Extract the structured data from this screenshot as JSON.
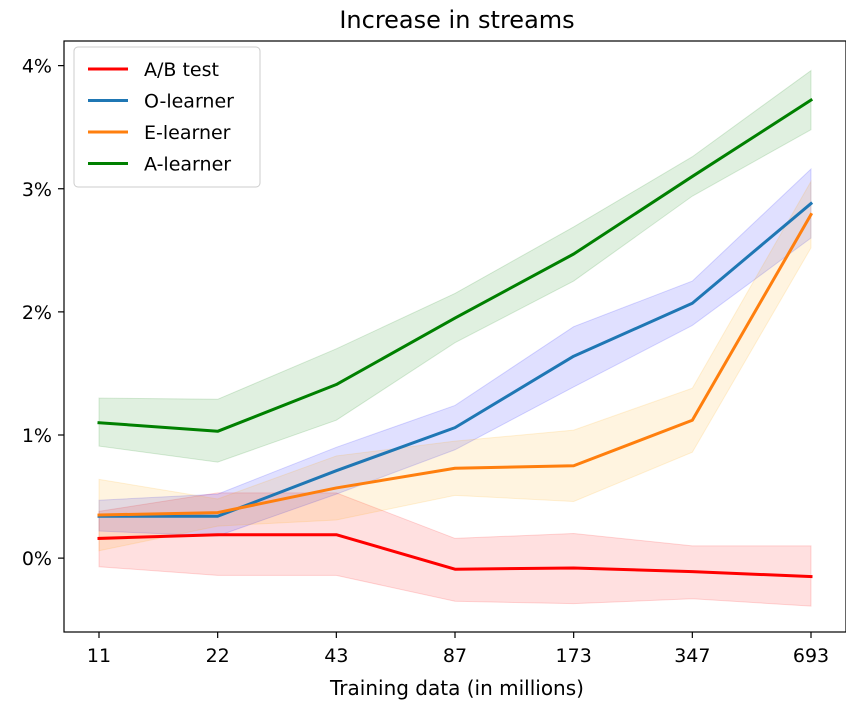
{
  "chart_data": {
    "type": "line",
    "title": "Increase in streams",
    "xlabel": "Training data (in millions)",
    "ylabel": "",
    "categories": [
      "11",
      "22",
      "43",
      "87",
      "173",
      "347",
      "693"
    ],
    "y_ticks": [
      0,
      1,
      2,
      3,
      4
    ],
    "y_tick_labels": [
      "0%",
      "1%",
      "2%",
      "3%",
      "4%"
    ],
    "y_unit": "%",
    "ylim": [
      -0.6,
      4.2
    ],
    "grid": false,
    "legend_position": "upper-left",
    "series": [
      {
        "name": "A/B test",
        "color": "#ff0000",
        "band_color": "#ff0000",
        "values": [
          0.16,
          0.19,
          0.19,
          -0.09,
          -0.08,
          -0.11,
          -0.15
        ],
        "lower": [
          -0.07,
          -0.14,
          -0.14,
          -0.35,
          -0.37,
          -0.33,
          -0.39
        ],
        "upper": [
          0.38,
          0.53,
          0.53,
          0.16,
          0.2,
          0.1,
          0.1
        ]
      },
      {
        "name": "O-learner",
        "color": "#1f77b4",
        "band_color": "#0000ff",
        "values": [
          0.34,
          0.34,
          0.71,
          1.06,
          1.64,
          2.07,
          2.88
        ],
        "lower": [
          0.22,
          0.18,
          0.52,
          0.88,
          1.39,
          1.89,
          2.6
        ],
        "upper": [
          0.47,
          0.52,
          0.9,
          1.24,
          1.88,
          2.25,
          3.16
        ]
      },
      {
        "name": "E-learner",
        "color": "#ff7f0e",
        "band_color": "#ffa500",
        "values": [
          0.35,
          0.37,
          0.57,
          0.73,
          0.75,
          1.12,
          2.79
        ],
        "lower": [
          0.06,
          0.26,
          0.31,
          0.51,
          0.46,
          0.86,
          2.52
        ],
        "upper": [
          0.64,
          0.48,
          0.83,
          0.95,
          1.04,
          1.38,
          3.06
        ]
      },
      {
        "name": "A-learner",
        "color": "#008000",
        "band_color": "#008000",
        "values": [
          1.1,
          1.03,
          1.41,
          1.95,
          2.47,
          3.1,
          3.72
        ],
        "lower": [
          0.91,
          0.78,
          1.12,
          1.75,
          2.25,
          2.94,
          3.48
        ],
        "upper": [
          1.3,
          1.29,
          1.7,
          2.15,
          2.69,
          3.26,
          3.96
        ]
      }
    ]
  }
}
